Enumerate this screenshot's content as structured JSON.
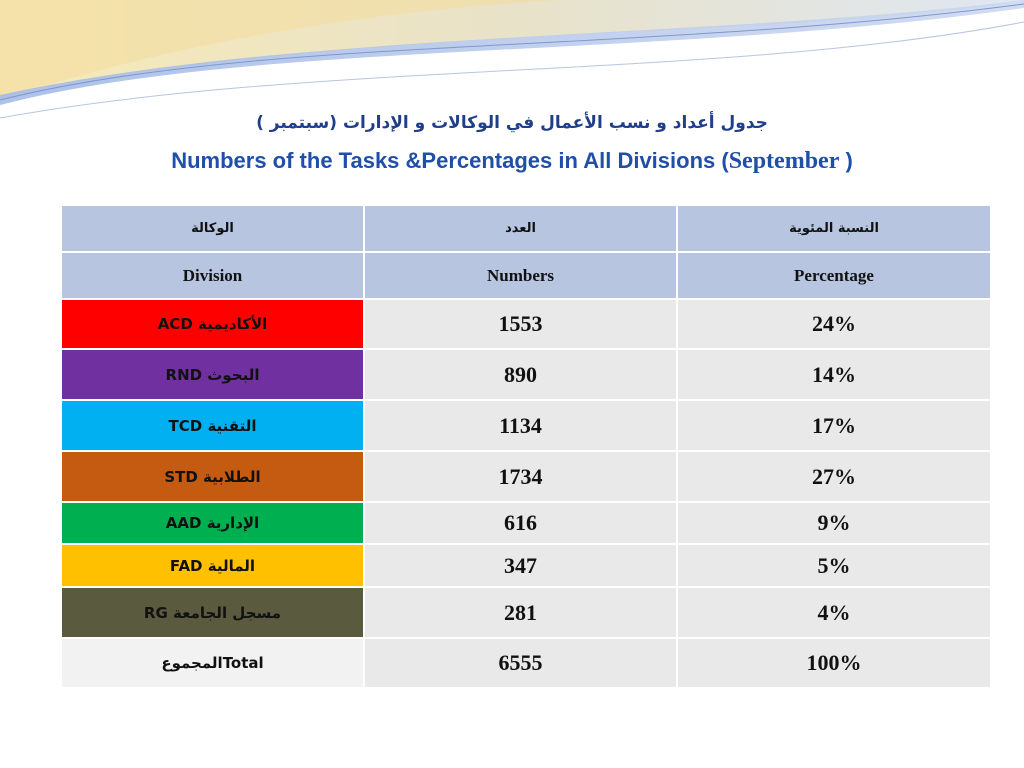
{
  "title": {
    "arabic": "جدول أعداد و نسب الأعمال في الوكالات و الإدارات (سبتمبر )",
    "english_main": "Numbers  of the Tasks &Percentages in All Divisions (",
    "english_month": "September",
    "english_close": " )"
  },
  "table": {
    "headers_ar": [
      "الوكالة",
      "العدد",
      "النسبة المئوية"
    ],
    "headers_en": [
      "Division",
      "Numbers",
      "Percentage"
    ],
    "rows": [
      {
        "division": "ACD الأكاديمية",
        "number": "1553",
        "percent": "24%",
        "color": "#ff0000"
      },
      {
        "division": "RND البحوث",
        "number": "890",
        "percent": "14%",
        "color": "#7030a0"
      },
      {
        "division": "TCD التقنية",
        "number": "1134",
        "percent": "17%",
        "color": "#00b0f0"
      },
      {
        "division": "STD  الطلابية",
        "number": "1734",
        "percent": "27%",
        "color": "#c55a11"
      },
      {
        "division": "AAD   الإدارية",
        "number": "616",
        "percent": "9%",
        "color": "#00b050"
      },
      {
        "division": "FAD المالية",
        "number": "347",
        "percent": "5%",
        "color": "#ffc000"
      },
      {
        "division": "RG   مسجل الجامعة",
        "number": "281",
        "percent": "4%",
        "color": "#5a5a3f"
      },
      {
        "division": "المجموعTotal",
        "number": "6555",
        "percent": "100%",
        "color": "#f2f2f2"
      }
    ]
  }
}
